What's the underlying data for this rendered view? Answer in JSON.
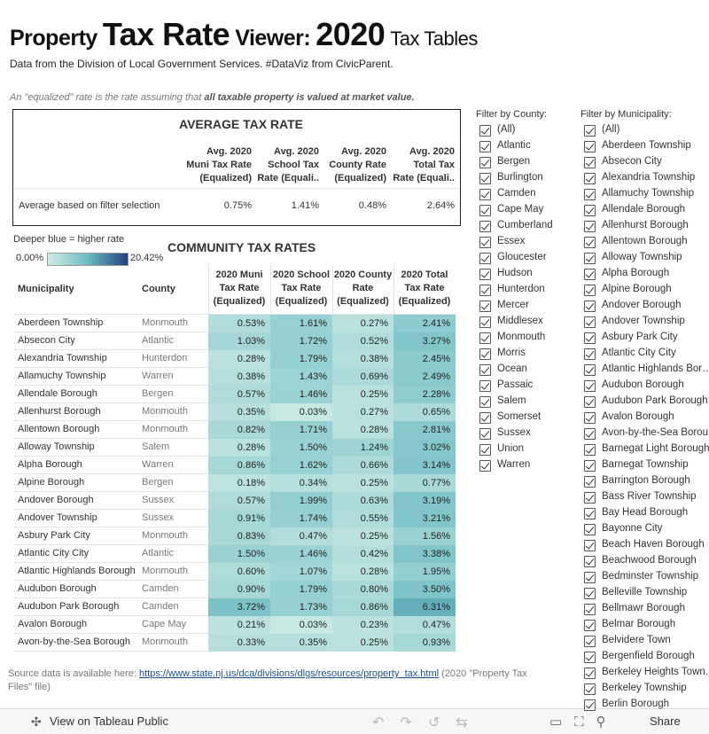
{
  "header": {
    "title_parts": [
      "Property",
      "Tax Rate",
      "Viewer:",
      "2020",
      "Tax Tables"
    ],
    "subtitle": "Data from the Division of Local Government Services. #DataViz from CivicParent.",
    "note": "An \"equalized\" rate is the rate assuming that ",
    "note_bold": "all taxable property is valued at market value."
  },
  "average_table": {
    "title": "AVERAGE TAX RATE",
    "headers": [
      "Avg. 2020\nMuni Tax Rate\n(Equalized)",
      "Avg. 2020\nSchool Tax\nRate (Equali..",
      "Avg. 2020\nCounty Rate\n(Equalized)",
      "Avg. 2020\nTotal Tax\nRate (Equali.."
    ],
    "row_label": "Average based on filter selection",
    "values": [
      "0.75%",
      "1.41%",
      "0.48%",
      "2.64%"
    ]
  },
  "legend": {
    "caption": "Deeper blue = higher rate",
    "min": "0.00%",
    "max": "20.42%"
  },
  "community_table": {
    "title": "COMMUNITY TAX RATES",
    "headers": [
      "Municipality",
      "County",
      "2020 Muni\nTax Rate\n(Equalized)",
      "2020 School\nTax Rate\n(Equalized)",
      "2020 County\nRate\n(Equalized)",
      "2020 Total\nTax Rate\n(Equalized)"
    ],
    "rows": [
      [
        "Aberdeen Township",
        "Monmouth",
        "0.53%",
        "1.61%",
        "0.27%",
        "2.41%"
      ],
      [
        "Absecon City",
        "Atlantic",
        "1.03%",
        "1.72%",
        "0.52%",
        "3.27%"
      ],
      [
        "Alexandria Township",
        "Hunterdon",
        "0.28%",
        "1.79%",
        "0.38%",
        "2.45%"
      ],
      [
        "Allamuchy Township",
        "Warren",
        "0.38%",
        "1.43%",
        "0.69%",
        "2.49%"
      ],
      [
        "Allendale Borough",
        "Bergen",
        "0.57%",
        "1.46%",
        "0.25%",
        "2.28%"
      ],
      [
        "Allenhurst Borough",
        "Monmouth",
        "0.35%",
        "0.03%",
        "0.27%",
        "0.65%"
      ],
      [
        "Allentown Borough",
        "Monmouth",
        "0.82%",
        "1.71%",
        "0.28%",
        "2.81%"
      ],
      [
        "Alloway Township",
        "Salem",
        "0.28%",
        "1.50%",
        "1.24%",
        "3.02%"
      ],
      [
        "Alpha Borough",
        "Warren",
        "0.86%",
        "1.62%",
        "0.66%",
        "3.14%"
      ],
      [
        "Alpine Borough",
        "Bergen",
        "0.18%",
        "0.34%",
        "0.25%",
        "0.77%"
      ],
      [
        "Andover Borough",
        "Sussex",
        "0.57%",
        "1.99%",
        "0.63%",
        "3.19%"
      ],
      [
        "Andover Township",
        "Sussex",
        "0.91%",
        "1.74%",
        "0.55%",
        "3.21%"
      ],
      [
        "Asbury Park City",
        "Monmouth",
        "0.83%",
        "0.47%",
        "0.25%",
        "1.56%"
      ],
      [
        "Atlantic City City",
        "Atlantic",
        "1.50%",
        "1.46%",
        "0.42%",
        "3.38%"
      ],
      [
        "Atlantic Highlands Borough",
        "Monmouth",
        "0.60%",
        "1.07%",
        "0.28%",
        "1.95%"
      ],
      [
        "Audubon Borough",
        "Camden",
        "0.90%",
        "1.79%",
        "0.80%",
        "3.50%"
      ],
      [
        "Audubon Park Borough",
        "Camden",
        "3.72%",
        "1.73%",
        "0.86%",
        "6.31%"
      ],
      [
        "Avalon Borough",
        "Cape May",
        "0.21%",
        "0.03%",
        "0.23%",
        "0.47%"
      ],
      [
        "Avon-by-the-Sea Borough",
        "Monmouth",
        "0.33%",
        "0.35%",
        "0.25%",
        "0.93%"
      ]
    ]
  },
  "county_filter": {
    "label": "Filter by County:",
    "options": [
      "(All)",
      "Atlantic",
      "Bergen",
      "Burlington",
      "Camden",
      "Cape May",
      "Cumberland",
      "Essex",
      "Gloucester",
      "Hudson",
      "Hunterdon",
      "Mercer",
      "Middlesex",
      "Monmouth",
      "Morris",
      "Ocean",
      "Passaic",
      "Salem",
      "Somerset",
      "Sussex",
      "Union",
      "Warren"
    ]
  },
  "municipality_filter": {
    "label": "Filter by Municipality:",
    "options": [
      "(All)",
      "Aberdeen Township",
      "Absecon City",
      "Alexandria Township",
      "Allamuchy Township",
      "Allendale Borough",
      "Allenhurst Borough",
      "Allentown Borough",
      "Alloway Township",
      "Alpha Borough",
      "Alpine Borough",
      "Andover Borough",
      "Andover Township",
      "Asbury Park City",
      "Atlantic City City",
      "Atlantic Highlands Bor…",
      "Audubon Borough",
      "Audubon Park Borough",
      "Avalon Borough",
      "Avon-by-the-Sea Borou…",
      "Barnegat Light Borough",
      "Barnegat Township",
      "Barrington Borough",
      "Bass River Township",
      "Bay Head Borough",
      "Bayonne City",
      "Beach Haven Borough",
      "Beachwood Borough",
      "Bedminster Township",
      "Belleville Township",
      "Bellmawr Borough",
      "Belmar Borough",
      "Belvidere Town",
      "Bergenfield Borough",
      "Berkeley Heights Town…",
      "Berkeley Township",
      "Berlin Borough"
    ]
  },
  "source": {
    "prefix": "Source data is available here: ",
    "link": "https://www.state.nj.us/dca/divisions/dlgs/resources/property_tax.html",
    "suffix": " (2020 \"Property Tax Files\" file)"
  },
  "toolbar": {
    "view_label": "View on Tableau Public",
    "share_label": "Share"
  }
}
